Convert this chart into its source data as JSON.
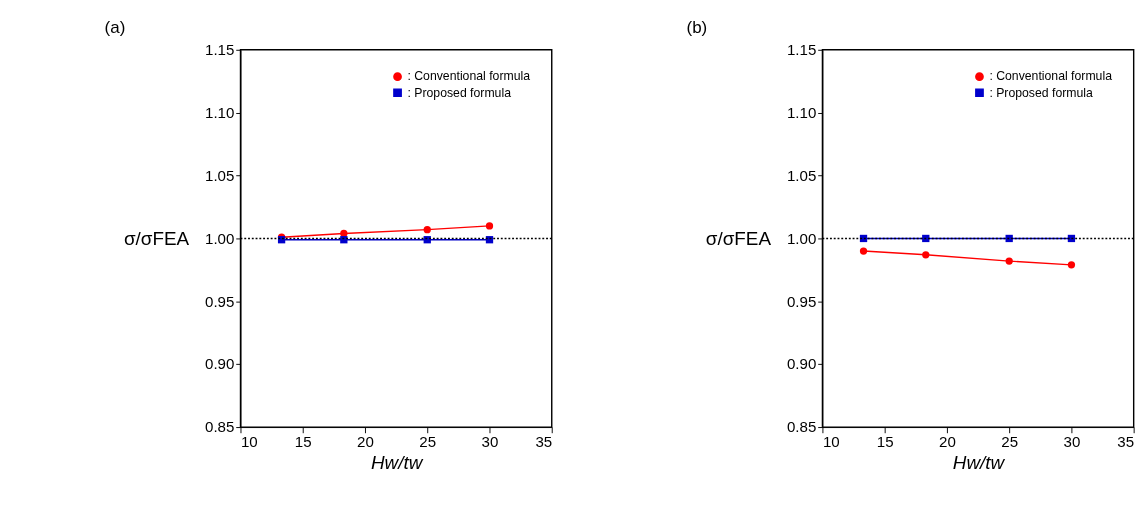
{
  "chart_data": [
    {
      "type": "line",
      "title": "(a)",
      "xlabel": "Hw/tw",
      "ylabel": "σ/σFEA",
      "x": [
        13.3,
        18.3,
        25,
        30
      ],
      "xlim": [
        10,
        35
      ],
      "xticks": [
        10,
        15,
        20,
        25,
        30,
        35
      ],
      "ylim": [
        0.85,
        1.15
      ],
      "yticks": [
        {
          "value": 0.85,
          "label": "0.85"
        },
        {
          "value": 0.9,
          "label": "0.90"
        },
        {
          "value": 0.95,
          "label": "0.95"
        },
        {
          "value": 1.0,
          "label": "1.00"
        },
        {
          "value": 1.05,
          "label": "1.05"
        },
        {
          "value": 1.1,
          "label": "1.10"
        },
        {
          "value": 1.15,
          "label": "1.15"
        }
      ],
      "grid": false,
      "legend": "top right",
      "line_style": "solid",
      "ref_lines": [
        {
          "axis": "y",
          "value": 1.0,
          "color": "#000000",
          "line_style": "dotted"
        }
      ],
      "series": [
        {
          "name": ": Conventional formula",
          "color": "#ff0000",
          "marker": "circle",
          "values": [
            1.001,
            1.004,
            1.007,
            1.01
          ]
        },
        {
          "name": ": Proposed formula",
          "color": "#0000cc",
          "marker": "square",
          "values": [
            0.999,
            0.999,
            0.999,
            0.999
          ]
        }
      ]
    },
    {
      "type": "line",
      "title": "(b)",
      "xlabel": "Hw/tw",
      "ylabel": "σ/σFEA",
      "x": [
        13.3,
        18.3,
        25,
        30
      ],
      "xlim": [
        10,
        35
      ],
      "xticks": [
        10,
        15,
        20,
        25,
        30,
        35
      ],
      "ylim": [
        0.85,
        1.15
      ],
      "yticks": [
        {
          "value": 0.85,
          "label": "0.85"
        },
        {
          "value": 0.9,
          "label": "0.90"
        },
        {
          "value": 0.95,
          "label": "0.95"
        },
        {
          "value": 1.0,
          "label": "1.00"
        },
        {
          "value": 1.05,
          "label": "1.05"
        },
        {
          "value": 1.1,
          "label": "1.10"
        },
        {
          "value": 1.15,
          "label": "1.15"
        }
      ],
      "grid": false,
      "legend": "top right",
      "line_style": "solid",
      "ref_lines": [
        {
          "axis": "y",
          "value": 1.0,
          "color": "#000000",
          "line_style": "dotted"
        }
      ],
      "series": [
        {
          "name": ": Conventional formula",
          "color": "#ff0000",
          "marker": "circle",
          "values": [
            0.99,
            0.987,
            0.982,
            0.979
          ]
        },
        {
          "name": ": Proposed formula",
          "color": "#0000cc",
          "marker": "square",
          "values": [
            1.0,
            1.0,
            1.0,
            1.0
          ]
        }
      ]
    }
  ]
}
